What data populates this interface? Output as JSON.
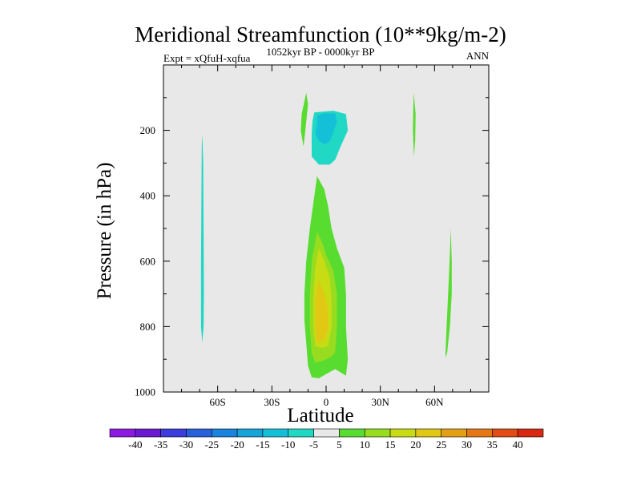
{
  "chart_data": {
    "type": "contour",
    "title": "Meridional Streamfunction (10**9kg/m-2)",
    "left_string": "Expt = xQfuH-xqfua",
    "center_string": "1052kyr BP - 0000kyr BP",
    "right_string": "ANN",
    "xlabel": "Latitude",
    "ylabel": "Pressure (in hPa)",
    "xlim": [
      -90,
      90
    ],
    "ylim": [
      1000,
      0
    ],
    "x_ticks": [
      {
        "value": -60,
        "label": "60S"
      },
      {
        "value": -30,
        "label": "30S"
      },
      {
        "value": 0,
        "label": "0"
      },
      {
        "value": 30,
        "label": "30N"
      },
      {
        "value": 60,
        "label": "60N"
      }
    ],
    "y_ticks": [
      {
        "value": 200,
        "label": "200"
      },
      {
        "value": 400,
        "label": "400"
      },
      {
        "value": 600,
        "label": "600"
      },
      {
        "value": 800,
        "label": "800"
      },
      {
        "value": 1000,
        "label": "1000"
      }
    ],
    "background_color": "#e8e8e8",
    "levels": [
      {
        "label": "-40",
        "color": "#8c1ae0"
      },
      {
        "label": "-35",
        "color": "#6a1ad0"
      },
      {
        "label": "-30",
        "color": "#3c3cdc"
      },
      {
        "label": "-25",
        "color": "#2860dc"
      },
      {
        "label": "-20",
        "color": "#1a84dc"
      },
      {
        "label": "-15",
        "color": "#14a4d8"
      },
      {
        "label": "-10",
        "color": "#14c0d8"
      },
      {
        "label": "-5",
        "color": "#20d8c4"
      },
      {
        "label": "5",
        "color": "#e8e8e8"
      },
      {
        "label": "10",
        "color": "#58dc30"
      },
      {
        "label": "15",
        "color": "#98dc20"
      },
      {
        "label": "20",
        "color": "#c8dc14"
      },
      {
        "label": "25",
        "color": "#e0c814"
      },
      {
        "label": "30",
        "color": "#e4a014"
      },
      {
        "label": "35",
        "color": "#e47814"
      },
      {
        "label": "40",
        "color": "#e04c14"
      },
      {
        "label": "",
        "color": "#d82814"
      }
    ],
    "regions": [
      {
        "name": "southern-hemisphere-band-negative",
        "value": -5,
        "points": [
          [
            -68.5,
            210
          ],
          [
            -68.0,
            300
          ],
          [
            -67.8,
            500
          ],
          [
            -67.6,
            700
          ],
          [
            -67.8,
            800
          ],
          [
            -68.5,
            850
          ],
          [
            -69.2,
            800
          ],
          [
            -69.2,
            600
          ],
          [
            -69.0,
            400
          ],
          [
            -68.8,
            250
          ]
        ]
      },
      {
        "name": "upper-tropical-negative-cell",
        "value": -5,
        "points": [
          [
            -6.5,
            145
          ],
          [
            4,
            140
          ],
          [
            11,
            150
          ],
          [
            12,
            200
          ],
          [
            8,
            250
          ],
          [
            5,
            290
          ],
          [
            2,
            305
          ],
          [
            -4,
            305
          ],
          [
            -8,
            280
          ],
          [
            -8,
            210
          ],
          [
            -7.5,
            170
          ]
        ]
      },
      {
        "name": "upper-tropical-core-negative",
        "value": -10,
        "points": [
          [
            -5,
            155
          ],
          [
            -1,
            148
          ],
          [
            5,
            148
          ],
          [
            6,
            175
          ],
          [
            4,
            205
          ],
          [
            2,
            235
          ],
          [
            -1,
            242
          ],
          [
            -4,
            232
          ],
          [
            -6,
            210
          ],
          [
            -5,
            185
          ]
        ]
      },
      {
        "name": "upper-tropical-band-positive",
        "value": 10,
        "points": [
          [
            -11,
            85
          ],
          [
            -10,
            120
          ],
          [
            -11.5,
            200
          ],
          [
            -12.5,
            250
          ],
          [
            -14,
            200
          ],
          [
            -13.5,
            150
          ]
        ]
      },
      {
        "name": "northern-subtropical-band-positive",
        "value": 10,
        "points": [
          [
            48.5,
            85
          ],
          [
            49.5,
            150
          ],
          [
            49.3,
            230
          ],
          [
            48.6,
            280
          ],
          [
            48.0,
            200
          ],
          [
            48.3,
            120
          ]
        ]
      },
      {
        "name": "lower-tropical-cell-positive",
        "value": 10,
        "points": [
          [
            -5,
            340
          ],
          [
            -1,
            380
          ],
          [
            1,
            430
          ],
          [
            3,
            500
          ],
          [
            6,
            560
          ],
          [
            10,
            620
          ],
          [
            11,
            700
          ],
          [
            11,
            800
          ],
          [
            12,
            900
          ],
          [
            11,
            950
          ],
          [
            8,
            940
          ],
          [
            5,
            930
          ],
          [
            0,
            945
          ],
          [
            -4,
            958
          ],
          [
            -8,
            955
          ],
          [
            -10,
            920
          ],
          [
            -11,
            850
          ],
          [
            -12,
            780
          ],
          [
            -12,
            700
          ],
          [
            -11,
            600
          ],
          [
            -9,
            500
          ],
          [
            -7,
            420
          ]
        ]
      },
      {
        "name": "lower-tropical-cell-level-15",
        "value": 15,
        "points": [
          [
            -5,
            510
          ],
          [
            -2,
            545
          ],
          [
            0,
            580
          ],
          [
            4,
            630
          ],
          [
            6,
            700
          ],
          [
            6,
            800
          ],
          [
            5,
            880
          ],
          [
            2,
            895
          ],
          [
            -2,
            905
          ],
          [
            -6,
            910
          ],
          [
            -8,
            880
          ],
          [
            -9,
            800
          ],
          [
            -9,
            700
          ],
          [
            -8,
            600
          ]
        ]
      },
      {
        "name": "lower-tropical-cell-level-20",
        "value": 20,
        "points": [
          [
            -4,
            560
          ],
          [
            -1,
            600
          ],
          [
            2,
            650
          ],
          [
            3,
            720
          ],
          [
            3,
            800
          ],
          [
            1,
            860
          ],
          [
            -2,
            865
          ],
          [
            -6,
            860
          ],
          [
            -7,
            800
          ],
          [
            -7,
            700
          ],
          [
            -6,
            620
          ]
        ]
      },
      {
        "name": "lower-tropical-cell-level-25",
        "value": 25,
        "points": [
          [
            -4,
            660
          ],
          [
            -1,
            700
          ],
          [
            1,
            750
          ],
          [
            1,
            810
          ],
          [
            -1,
            840
          ],
          [
            -5,
            850
          ],
          [
            -6,
            800
          ],
          [
            -6,
            720
          ]
        ]
      },
      {
        "name": "northern-midlatitude-band-positive",
        "value": 10,
        "points": [
          [
            69,
            500
          ],
          [
            69.5,
            600
          ],
          [
            69.5,
            700
          ],
          [
            68.5,
            800
          ],
          [
            67,
            880
          ],
          [
            66,
            895
          ],
          [
            66.5,
            820
          ],
          [
            67.5,
            700
          ],
          [
            68.3,
            600
          ]
        ]
      }
    ]
  },
  "colorbar_labels": [
    "-40",
    "-35",
    "-30",
    "-25",
    "-20",
    "-15",
    "-10",
    "-5",
    "5",
    "10",
    "15",
    "20",
    "25",
    "30",
    "35",
    "40"
  ]
}
